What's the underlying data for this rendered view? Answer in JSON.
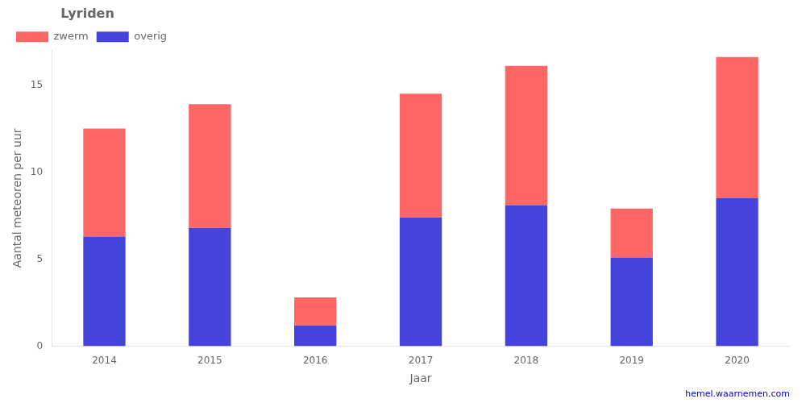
{
  "chart_data": {
    "type": "bar",
    "title": "Lyriden",
    "categories": [
      "2014",
      "2015",
      "2016",
      "2017",
      "2018",
      "2019",
      "2020"
    ],
    "series": [
      {
        "name": "overig",
        "color": "#4444dd",
        "values": [
          6.3,
          6.8,
          1.2,
          7.4,
          8.1,
          5.1,
          8.5
        ]
      },
      {
        "name": "zwerm",
        "color": "#ff6666",
        "values": [
          6.2,
          7.1,
          1.6,
          7.1,
          8.0,
          2.8,
          8.1
        ]
      }
    ],
    "stacked": true,
    "xlabel": "Jaar",
    "ylabel": "Aantal meteoren per uur",
    "ylim": [
      0,
      17
    ],
    "yticks": [
      0,
      5,
      10,
      15
    ],
    "grid": false,
    "legend": "upper left",
    "annotations": [
      {
        "text": "hemel.waarnemen.com",
        "color": "#0000cc"
      }
    ]
  }
}
